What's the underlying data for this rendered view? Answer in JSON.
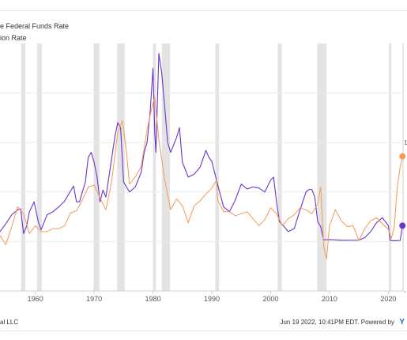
{
  "legend": {
    "items": [
      {
        "label": "e Federal Funds Rate",
        "color": "#6a35c9"
      },
      {
        "label": "ion Rate",
        "color": "#f59a56"
      }
    ]
  },
  "footer": {
    "left": "al LLC",
    "right": "Jun 19 2022, 10:41PM EDT. Powered by",
    "brand": "Y"
  },
  "chart_data": {
    "type": "line",
    "x_ticks": [
      "1960",
      "1970",
      "1980",
      "1990",
      "2000",
      "2010",
      "2020"
    ],
    "xlim": [
      1954,
      2022.5
    ],
    "y_ticks": [
      "1",
      "-"
    ],
    "ylim": [
      -5,
      20
    ],
    "grid": true,
    "recession_bands": [
      [
        1957.6,
        1958.3
      ],
      [
        1960.3,
        1961.1
      ],
      [
        1969.9,
        1970.9
      ],
      [
        1973.9,
        1975.2
      ],
      [
        1980.0,
        1980.5
      ],
      [
        1981.5,
        1982.9
      ],
      [
        1990.6,
        1991.2
      ],
      [
        2001.2,
        2001.9
      ],
      [
        2007.9,
        2009.5
      ],
      [
        2020.1,
        2020.4
      ]
    ],
    "series": [
      {
        "name": "e Federal Funds Rate",
        "color": "#6a35c9",
        "x": [
          1954,
          1955,
          1956,
          1957,
          1957.5,
          1958,
          1958.5,
          1959,
          1959.8,
          1960.5,
          1961,
          1962,
          1963,
          1964,
          1965,
          1966,
          1966.5,
          1967,
          1967.5,
          1968,
          1968.5,
          1969,
          1969.5,
          1970,
          1970.5,
          1971,
          1971.5,
          1972,
          1973,
          1973.5,
          1974,
          1974.5,
          1975,
          1975.5,
          1976,
          1977,
          1978,
          1978.5,
          1979,
          1979.5,
          1980,
          1980.3,
          1980.5,
          1980.8,
          1981,
          1981.5,
          1982,
          1982.5,
          1983,
          1984,
          1984.5,
          1985,
          1986,
          1987,
          1988,
          1989,
          1989.5,
          1990,
          1991,
          1992,
          1993,
          1994,
          1995,
          1996,
          1997,
          1998,
          1999,
          2000,
          2000.5,
          2001,
          2001.5,
          2002,
          2003,
          2004,
          2005,
          2006,
          2006.5,
          2007,
          2007.5,
          2008,
          2008.5,
          2009,
          2010,
          2012,
          2015,
          2016,
          2017,
          2018,
          2019,
          2019.5,
          2020,
          2020.3,
          2021,
          2022,
          2022.4
        ],
        "y": [
          1.0,
          1.8,
          2.7,
          3.2,
          3.3,
          0.8,
          1.5,
          3.0,
          4.0,
          2.0,
          1.2,
          2.7,
          3.0,
          3.5,
          4.1,
          5.1,
          5.6,
          4.0,
          4.0,
          5.0,
          6.0,
          8.5,
          9.0,
          8.0,
          6.5,
          4.0,
          5.2,
          4.5,
          8.5,
          10.5,
          12.0,
          11.5,
          6.0,
          5.5,
          5.0,
          5.5,
          7.0,
          9.0,
          10.0,
          13.0,
          17.5,
          11.0,
          9.0,
          15.0,
          19.0,
          17.0,
          13.5,
          10.0,
          9.0,
          10.5,
          11.5,
          8.0,
          6.5,
          6.8,
          7.5,
          9.2,
          8.5,
          8.1,
          5.7,
          3.5,
          3.0,
          4.2,
          5.8,
          5.3,
          5.5,
          5.4,
          5.0,
          6.2,
          6.5,
          4.0,
          2.0,
          1.7,
          1.0,
          1.3,
          3.2,
          5.0,
          5.25,
          5.25,
          4.5,
          2.0,
          1.5,
          0.15,
          0.18,
          0.12,
          0.13,
          0.4,
          1.0,
          1.9,
          2.4,
          2.0,
          1.6,
          0.1,
          0.08,
          0.1,
          1.6
        ]
      },
      {
        "name": "ion Rate",
        "color": "#f59a56",
        "x": [
          1954,
          1955,
          1956,
          1957,
          1958,
          1959,
          1960,
          1961,
          1962,
          1963,
          1964,
          1965,
          1966,
          1967,
          1968,
          1969,
          1970,
          1971,
          1972,
          1973,
          1974,
          1974.8,
          1975.5,
          1976,
          1977,
          1978,
          1979,
          1979.8,
          1980.3,
          1981,
          1982,
          1983,
          1984,
          1985,
          1986,
          1987,
          1988,
          1989,
          1990,
          1990.8,
          1991,
          1992,
          1993,
          1994,
          1995,
          1996,
          1997,
          1998,
          1999,
          2000,
          2001,
          2002,
          2003,
          2004,
          2005,
          2006,
          2007,
          2008,
          2008.5,
          2009,
          2009.5,
          2010,
          2011,
          2012,
          2013,
          2014,
          2015,
          2016,
          2017,
          2018,
          2019,
          2020,
          2020.5,
          2021,
          2021.5,
          2022,
          2022.4
        ],
        "y": [
          0.6,
          -0.3,
          1.5,
          3.5,
          2.8,
          0.8,
          1.6,
          1.0,
          1.0,
          1.3,
          1.3,
          1.6,
          2.9,
          3.1,
          4.2,
          5.5,
          5.7,
          4.4,
          3.2,
          6.2,
          11.0,
          12.2,
          9.0,
          5.8,
          6.5,
          7.6,
          11.3,
          13.5,
          14.6,
          10.3,
          6.2,
          3.2,
          4.3,
          3.6,
          1.9,
          3.6,
          4.1,
          4.8,
          5.4,
          6.2,
          4.2,
          3.0,
          3.0,
          2.6,
          2.8,
          3.0,
          2.3,
          1.6,
          2.2,
          3.4,
          2.8,
          1.6,
          2.3,
          2.7,
          3.4,
          3.2,
          2.8,
          3.8,
          5.5,
          -0.4,
          -1.8,
          1.6,
          3.2,
          2.1,
          1.5,
          1.6,
          0.1,
          1.3,
          2.1,
          2.4,
          1.8,
          1.2,
          0.3,
          1.4,
          5.4,
          7.5,
          8.6
        ]
      }
    ]
  }
}
